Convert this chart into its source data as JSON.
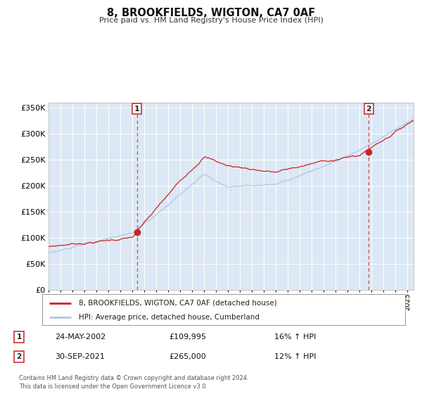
{
  "title": "8, BROOKFIELDS, WIGTON, CA7 0AF",
  "subtitle": "Price paid vs. HM Land Registry's House Price Index (HPI)",
  "background_color": "#ffffff",
  "plot_bg_color": "#dce8f5",
  "ylim": [
    0,
    360000
  ],
  "yticks": [
    0,
    50000,
    100000,
    150000,
    200000,
    250000,
    300000,
    350000
  ],
  "xlim_start": 1995.0,
  "xlim_end": 2025.5,
  "sale1_year": 2002.39,
  "sale1_price": 109995,
  "sale1_label": "1",
  "sale1_date": "24-MAY-2002",
  "sale1_pct": "16%",
  "sale2_year": 2021.75,
  "sale2_price": 265000,
  "sale2_label": "2",
  "sale2_date": "30-SEP-2021",
  "sale2_pct": "12%",
  "hpi_color": "#aac8e8",
  "price_color": "#cc2222",
  "dot_color": "#cc2222",
  "vline_color": "#dd4444",
  "legend_label_price": "8, BROOKFIELDS, WIGTON, CA7 0AF (detached house)",
  "legend_label_hpi": "HPI: Average price, detached house, Cumberland",
  "footer": "Contains HM Land Registry data © Crown copyright and database right 2024.\nThis data is licensed under the Open Government Licence v3.0.",
  "xlabel_years": [
    1995,
    1996,
    1997,
    1998,
    1999,
    2000,
    2001,
    2002,
    2003,
    2004,
    2005,
    2006,
    2007,
    2008,
    2009,
    2010,
    2011,
    2012,
    2013,
    2014,
    2015,
    2016,
    2017,
    2018,
    2019,
    2020,
    2021,
    2022,
    2023,
    2024,
    2025
  ]
}
